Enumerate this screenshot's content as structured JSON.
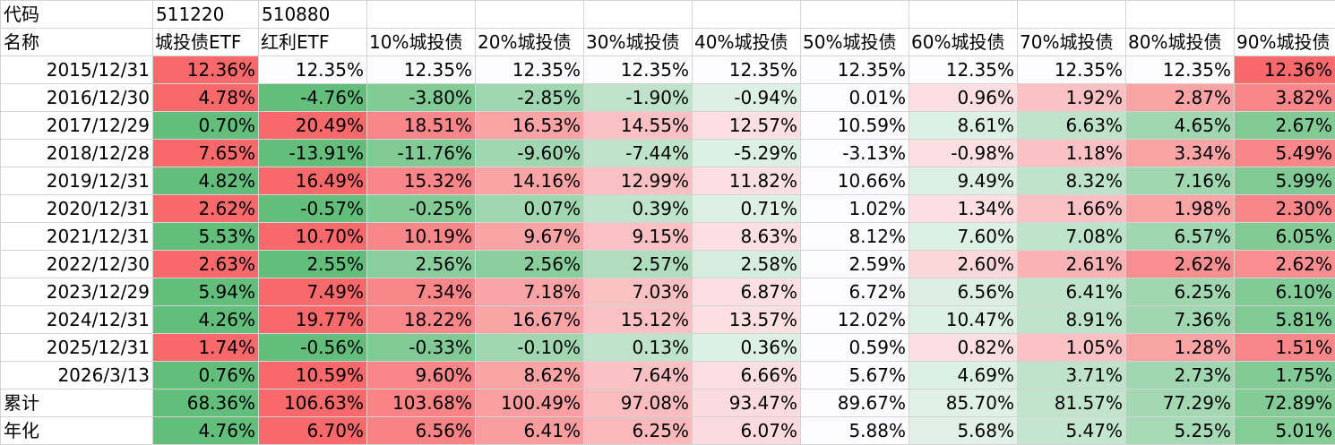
{
  "header": {
    "code_label": "代码",
    "name_label": "名称",
    "codes": [
      "511220",
      "510880"
    ],
    "names": [
      "城投债ETF",
      "红利ETF",
      "10%城投债",
      "20%城投债",
      "30%城投债",
      "40%城投债",
      "50%城投债",
      "60%城投债",
      "70%城投债",
      "80%城投债",
      "90%城投债"
    ]
  },
  "rows": [
    {
      "label": "2015/12/31",
      "values": [
        "12.36%",
        "12.35%",
        "12.35%",
        "12.35%",
        "12.35%",
        "12.35%",
        "12.35%",
        "12.35%",
        "12.35%",
        "12.35%",
        "12.36%"
      ]
    },
    {
      "label": "2016/12/30",
      "values": [
        "4.78%",
        "-4.76%",
        "-3.80%",
        "-2.85%",
        "-1.90%",
        "-0.94%",
        "0.01%",
        "0.96%",
        "1.92%",
        "2.87%",
        "3.82%"
      ]
    },
    {
      "label": "2017/12/29",
      "values": [
        "0.70%",
        "20.49%",
        "18.51%",
        "16.53%",
        "14.55%",
        "12.57%",
        "10.59%",
        "8.61%",
        "6.63%",
        "4.65%",
        "2.67%"
      ]
    },
    {
      "label": "2018/12/28",
      "values": [
        "7.65%",
        "-13.91%",
        "-11.76%",
        "-9.60%",
        "-7.44%",
        "-5.29%",
        "-3.13%",
        "-0.98%",
        "1.18%",
        "3.34%",
        "5.49%"
      ]
    },
    {
      "label": "2019/12/31",
      "values": [
        "4.82%",
        "16.49%",
        "15.32%",
        "14.16%",
        "12.99%",
        "11.82%",
        "10.66%",
        "9.49%",
        "8.32%",
        "7.16%",
        "5.99%"
      ]
    },
    {
      "label": "2020/12/31",
      "values": [
        "2.62%",
        "-0.57%",
        "-0.25%",
        "0.07%",
        "0.39%",
        "0.71%",
        "1.02%",
        "1.34%",
        "1.66%",
        "1.98%",
        "2.30%"
      ]
    },
    {
      "label": "2021/12/31",
      "values": [
        "5.53%",
        "10.70%",
        "10.19%",
        "9.67%",
        "9.15%",
        "8.63%",
        "8.12%",
        "7.60%",
        "7.08%",
        "6.57%",
        "6.05%"
      ]
    },
    {
      "label": "2022/12/30",
      "values": [
        "2.63%",
        "2.55%",
        "2.56%",
        "2.56%",
        "2.57%",
        "2.58%",
        "2.59%",
        "2.60%",
        "2.61%",
        "2.62%",
        "2.62%"
      ]
    },
    {
      "label": "2023/12/29",
      "values": [
        "5.94%",
        "7.49%",
        "7.34%",
        "7.18%",
        "7.03%",
        "6.87%",
        "6.72%",
        "6.56%",
        "6.41%",
        "6.25%",
        "6.10%"
      ]
    },
    {
      "label": "2024/12/31",
      "values": [
        "4.26%",
        "19.77%",
        "18.22%",
        "16.67%",
        "15.12%",
        "13.57%",
        "12.02%",
        "10.47%",
        "8.91%",
        "7.36%",
        "5.81%"
      ]
    },
    {
      "label": "2025/12/31",
      "values": [
        "1.74%",
        "-0.56%",
        "-0.33%",
        "-0.10%",
        "0.13%",
        "0.36%",
        "0.59%",
        "0.82%",
        "1.05%",
        "1.28%",
        "1.51%"
      ]
    },
    {
      "label": "2026/3/13",
      "values": [
        "0.76%",
        "10.59%",
        "9.60%",
        "8.62%",
        "7.64%",
        "6.66%",
        "5.67%",
        "4.69%",
        "3.71%",
        "2.73%",
        "1.75%"
      ]
    }
  ],
  "summary": [
    {
      "label": "累计",
      "values": [
        "68.36%",
        "106.63%",
        "103.68%",
        "100.49%",
        "97.08%",
        "93.47%",
        "89.67%",
        "85.70%",
        "81.57%",
        "77.29%",
        "72.89%"
      ]
    },
    {
      "label": "年化",
      "values": [
        "4.76%",
        "6.70%",
        "6.56%",
        "6.41%",
        "6.25%",
        "6.07%",
        "5.88%",
        "5.68%",
        "5.47%",
        "5.25%",
        "5.01%"
      ]
    }
  ],
  "colors": {
    "green_strong": "#63be7b",
    "red_strong": "#f8696b",
    "neutral": "#fcfcff"
  }
}
